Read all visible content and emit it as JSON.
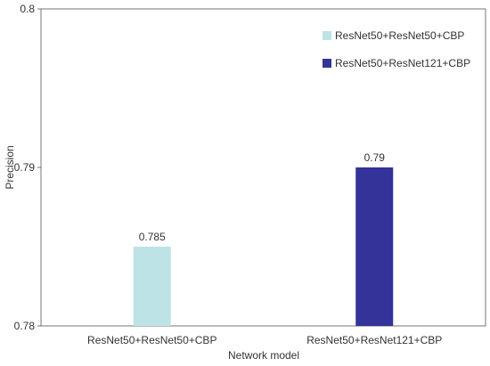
{
  "chart_data": {
    "type": "bar",
    "title": "",
    "xlabel": "Network model",
    "ylabel": "Precision",
    "categories": [
      "ResNet50+ResNet50+CBP",
      "ResNet50+ResNet121+CBP"
    ],
    "series": [
      {
        "name": "ResNet50+ResNet50+CBP",
        "values": [
          0.785,
          null
        ],
        "color": "#bde3e6"
      },
      {
        "name": "ResNet50+ResNet121+CBP",
        "values": [
          null,
          0.79
        ],
        "color": "#333399"
      }
    ],
    "data_labels": [
      "0.785",
      "0.79"
    ],
    "ylim": [
      0.78,
      0.8
    ],
    "yticks": [
      0.78,
      0.79,
      0.8
    ],
    "ytick_labels": [
      "0.78",
      "0.79",
      "0.8"
    ],
    "grid": false,
    "legend_position": "top-right"
  }
}
